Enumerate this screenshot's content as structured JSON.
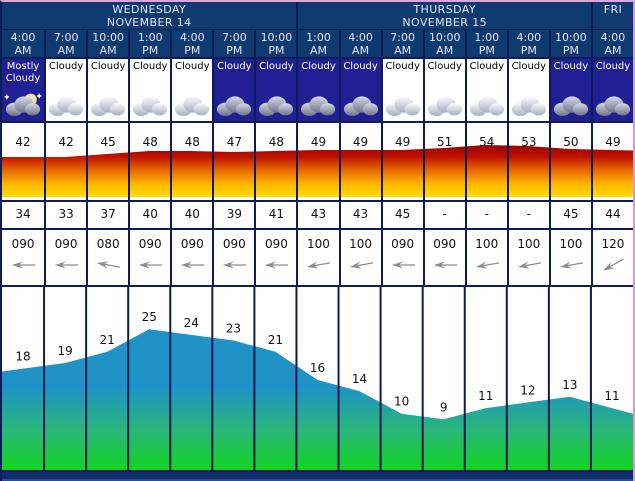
{
  "header": {
    "days": [
      {
        "name": "WEDNESDAY",
        "date": "NOVEMBER 14"
      },
      {
        "name": "THURSDAY",
        "date": "NOVEMBER 15"
      },
      {
        "name": "FRI",
        "date": ""
      }
    ],
    "times": [
      {
        "time": "4:00",
        "period": "AM"
      },
      {
        "time": "7:00",
        "period": "AM"
      },
      {
        "time": "10:00",
        "period": "AM"
      },
      {
        "time": "1:00",
        "period": "PM"
      },
      {
        "time": "4:00",
        "period": "PM"
      },
      {
        "time": "7:00",
        "period": "PM"
      },
      {
        "time": "10:00",
        "period": "PM"
      },
      {
        "time": "1:00",
        "period": "AM"
      },
      {
        "time": "4:00",
        "period": "AM"
      },
      {
        "time": "7:00",
        "period": "AM"
      },
      {
        "time": "10:00",
        "period": "AM"
      },
      {
        "time": "1:00",
        "period": "PM"
      },
      {
        "time": "4:00",
        "period": "PM"
      },
      {
        "time": "10:00",
        "period": "PM"
      },
      {
        "time": "4:00",
        "period": "AM"
      }
    ]
  },
  "conditions": [
    {
      "label": "Mostly Cloudy",
      "icon": "cloud-moon-icon",
      "night": true
    },
    {
      "label": "Cloudy",
      "icon": "cloud-icon",
      "night": false
    },
    {
      "label": "Cloudy",
      "icon": "cloud-icon",
      "night": false
    },
    {
      "label": "Cloudy",
      "icon": "cloud-icon",
      "night": false
    },
    {
      "label": "Cloudy",
      "icon": "cloud-icon",
      "night": false
    },
    {
      "label": "Cloudy",
      "icon": "cloud-icon",
      "night": true
    },
    {
      "label": "Cloudy",
      "icon": "cloud-icon",
      "night": true
    },
    {
      "label": "Cloudy",
      "icon": "cloud-icon",
      "night": true
    },
    {
      "label": "Cloudy",
      "icon": "cloud-icon",
      "night": true
    },
    {
      "label": "Cloudy",
      "icon": "cloud-icon",
      "night": false
    },
    {
      "label": "Cloudy",
      "icon": "cloud-icon",
      "night": false
    },
    {
      "label": "Cloudy",
      "icon": "cloud-icon",
      "night": false
    },
    {
      "label": "Cloudy",
      "icon": "cloud-icon",
      "night": false
    },
    {
      "label": "Cloudy",
      "icon": "cloud-icon",
      "night": true
    },
    {
      "label": "Cloudy",
      "icon": "cloud-icon",
      "night": true
    }
  ],
  "chart_data": [
    {
      "type": "area",
      "name": "temperature-band",
      "values": [
        42,
        42,
        45,
        48,
        48,
        47,
        48,
        49,
        49,
        49,
        51,
        54,
        53,
        50,
        49
      ],
      "gradient": [
        "#8f0300",
        "#c01000",
        "#e66700",
        "#ffb300",
        "#ffdf00"
      ]
    },
    {
      "type": "table",
      "name": "secondary-temperature",
      "values": [
        34,
        33,
        37,
        40,
        40,
        39,
        41,
        43,
        43,
        45,
        "-",
        "-",
        "-",
        45,
        44
      ]
    },
    {
      "type": "table",
      "name": "wind-direction-degrees",
      "values": [
        "090",
        "090",
        "080",
        "090",
        "090",
        "090",
        "090",
        "100",
        "100",
        "090",
        "090",
        "100",
        "100",
        "100",
        "120"
      ]
    },
    {
      "type": "area",
      "name": "wind-speed",
      "values": [
        18,
        19,
        21,
        25,
        24,
        23,
        21,
        16,
        14,
        10,
        9,
        11,
        12,
        13,
        11
      ],
      "ylim": [
        0,
        32.5
      ],
      "gradient": [
        "#1f93c6",
        "#1f93c6",
        "#2ab973",
        "#12d41f"
      ]
    }
  ],
  "colors": {
    "header_bg": "#0e3a70",
    "night_bg": "#202094",
    "day_bg": "#ffffff",
    "grid": "#0c1c55",
    "arrow": "#8c8c8c",
    "frame_top": "#dca6dc",
    "frame_right": "#c9a0cc",
    "bottom_bar": "#0e2d69"
  }
}
